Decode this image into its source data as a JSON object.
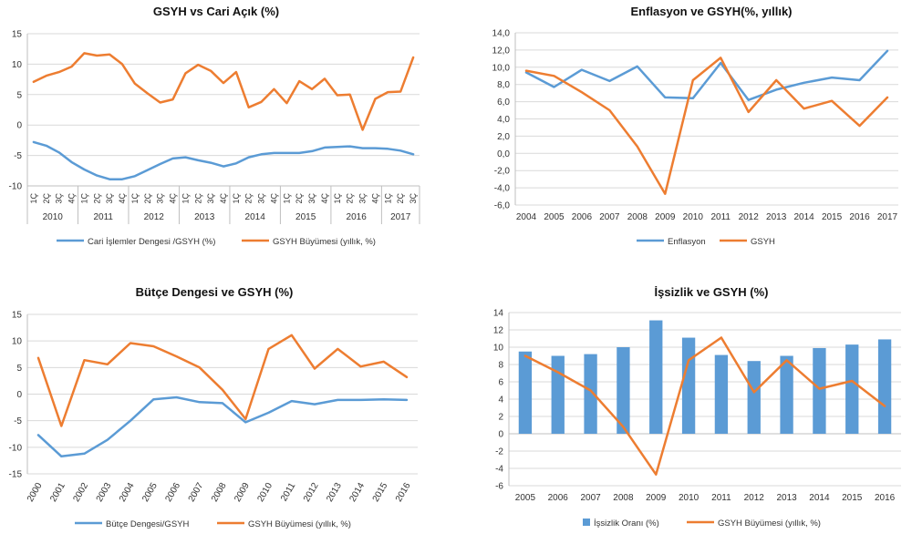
{
  "colors": {
    "blue": "#5b9bd5",
    "orange": "#ed7d31",
    "bar": "#5b9bd5"
  },
  "chart_data": [
    {
      "type": "line",
      "title": "GSYH vs Cari Açık (%)",
      "years": [
        "2010",
        "2011",
        "2012",
        "2013",
        "2014",
        "2015",
        "2016",
        "2017"
      ],
      "quarters": [
        "1Ç",
        "2Ç",
        "3Ç",
        "4Ç",
        "1Ç",
        "2Ç",
        "3Ç",
        "4Ç",
        "1Ç",
        "2Ç",
        "3Ç",
        "4Ç",
        "1Ç",
        "2Ç",
        "3Ç",
        "4Ç",
        "1Ç",
        "2Ç",
        "3Ç",
        "4Ç",
        "1Ç",
        "2Ç",
        "3Ç",
        "4Ç",
        "1Ç",
        "2Ç",
        "3Ç",
        "4Ç",
        "1Ç",
        "2Ç",
        "3Ç"
      ],
      "ylim": [
        -10,
        15
      ],
      "yticks": [
        15,
        10,
        5,
        0,
        -5,
        -10
      ],
      "ytick_labels": [
        "15",
        "10",
        "5",
        "0",
        "-5",
        "-10"
      ],
      "series": [
        {
          "name": "Cari İşlemler Dengesi /GSYH (%)",
          "color": "#5b9bd5",
          "values": [
            -2.8,
            -3.4,
            -4.5,
            -6.1,
            -7.3,
            -8.3,
            -8.9,
            -8.9,
            -8.4,
            -7.4,
            -6.4,
            -5.5,
            -5.3,
            -5.8,
            -6.2,
            -6.8,
            -6.3,
            -5.3,
            -4.8,
            -4.6,
            -4.6,
            -4.6,
            -4.3,
            -3.7,
            -3.6,
            -3.5,
            -3.8,
            -3.8,
            -3.9,
            -4.2,
            -4.8
          ]
        },
        {
          "name": "GSYH Büyümesi (yıllık, %)",
          "color": "#ed7d31",
          "values": [
            7.1,
            8.1,
            8.7,
            9.6,
            11.8,
            11.4,
            11.6,
            10.0,
            6.8,
            5.2,
            3.7,
            4.2,
            8.5,
            9.9,
            8.9,
            6.9,
            8.7,
            2.9,
            3.8,
            5.9,
            3.6,
            7.2,
            5.9,
            7.6,
            4.9,
            5.0,
            -0.8,
            4.3,
            5.4,
            5.5,
            11.1
          ]
        }
      ]
    },
    {
      "type": "line",
      "title": "Enflasyon ve GSYH(%, yıllık)",
      "x": [
        "2004",
        "2005",
        "2006",
        "2007",
        "2008",
        "2009",
        "2010",
        "2011",
        "2012",
        "2013",
        "2014",
        "2015",
        "2016",
        "2017"
      ],
      "ylim": [
        -6,
        14
      ],
      "yticks": [
        14,
        12,
        10,
        8,
        6,
        4,
        2,
        0,
        -2,
        -4,
        -6
      ],
      "ytick_labels": [
        "14,0",
        "12,0",
        "10,0",
        "8,0",
        "6,0",
        "4,0",
        "2,0",
        "0,0",
        "-2,0",
        "-4,0",
        "-6,0"
      ],
      "series": [
        {
          "name": "Enflasyon",
          "color": "#5b9bd5",
          "values": [
            9.4,
            7.7,
            9.7,
            8.4,
            10.1,
            6.5,
            6.4,
            10.5,
            6.2,
            7.4,
            8.2,
            8.8,
            8.5,
            11.9
          ]
        },
        {
          "name": "GSYH",
          "color": "#ed7d31",
          "values": [
            9.6,
            9.0,
            7.1,
            5.0,
            0.8,
            -4.7,
            8.5,
            11.1,
            4.8,
            8.5,
            5.2,
            6.1,
            3.2,
            6.5
          ]
        }
      ]
    },
    {
      "type": "line",
      "title": "Bütçe Dengesi ve GSYH (%)",
      "x": [
        "2000",
        "2001",
        "2002",
        "2003",
        "2004",
        "2005",
        "2006",
        "2007",
        "2008",
        "2009",
        "2010",
        "2011",
        "2012",
        "2013",
        "2014",
        "2015",
        "2016"
      ],
      "ylim": [
        -15,
        15
      ],
      "yticks": [
        15,
        10,
        5,
        0,
        -5,
        -10,
        -15
      ],
      "ytick_labels": [
        "15",
        "10",
        "5",
        "0",
        "-5",
        "-10",
        "-15"
      ],
      "series": [
        {
          "name": "Bütçe Dengesi/GSYH",
          "color": "#5b9bd5",
          "values": [
            -7.7,
            -11.7,
            -11.2,
            -8.6,
            -5.0,
            -1.0,
            -0.6,
            -1.5,
            -1.7,
            -5.3,
            -3.5,
            -1.3,
            -1.9,
            -1.1,
            -1.1,
            -1.0,
            -1.1
          ]
        },
        {
          "name": "GSYH Büyümesi (yıllık, %)",
          "color": "#ed7d31",
          "values": [
            6.8,
            -6.0,
            6.4,
            5.6,
            9.6,
            9.0,
            7.1,
            5.0,
            0.8,
            -4.7,
            8.5,
            11.1,
            4.8,
            8.5,
            5.2,
            6.1,
            3.2
          ]
        }
      ]
    },
    {
      "type": "bar",
      "title": "İşsizlik ve GSYH (%)",
      "categories": [
        "2005",
        "2006",
        "2007",
        "2008",
        "2009",
        "2010",
        "2011",
        "2012",
        "2013",
        "2014",
        "2015",
        "2016"
      ],
      "ylim": [
        -6,
        14
      ],
      "yticks": [
        14,
        12,
        10,
        8,
        6,
        4,
        2,
        0,
        -2,
        -4,
        -6
      ],
      "ytick_labels": [
        "14",
        "12",
        "10",
        "8",
        "6",
        "4",
        "2",
        "0",
        "-2",
        "-4",
        "-6"
      ],
      "series": [
        {
          "name": "İşsizlik Oranı (%)",
          "kind": "bar",
          "color": "#5b9bd5",
          "values": [
            9.5,
            9.0,
            9.2,
            10.0,
            13.1,
            11.1,
            9.1,
            8.4,
            9.0,
            9.9,
            10.3,
            10.9
          ]
        },
        {
          "name": "GSYH Büyümesi (yıllık, %)",
          "kind": "line",
          "color": "#ed7d31",
          "values": [
            9.0,
            7.1,
            5.0,
            0.8,
            -4.7,
            8.5,
            11.1,
            4.8,
            8.5,
            5.2,
            6.1,
            3.2
          ]
        }
      ]
    }
  ]
}
